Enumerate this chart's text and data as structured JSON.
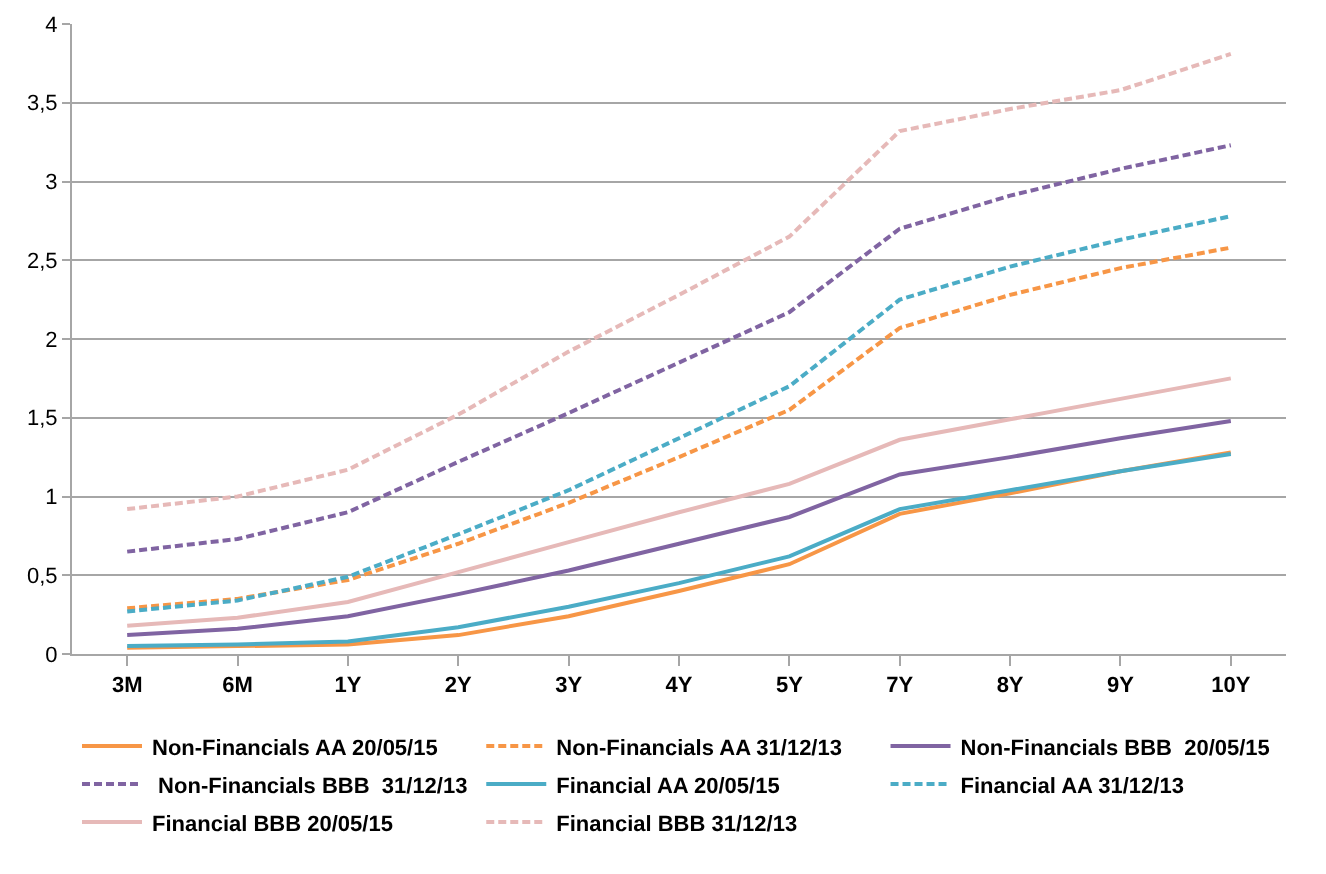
{
  "chart_data": {
    "type": "line",
    "categories": [
      "3M",
      "6M",
      "1Y",
      "2Y",
      "3Y",
      "4Y",
      "5Y",
      "7Y",
      "8Y",
      "9Y",
      "10Y"
    ],
    "ylim": [
      0,
      4
    ],
    "yticks": [
      0,
      {
        "value": 0.5,
        "label": "0,5"
      },
      1,
      {
        "value": 1.5,
        "label": "1,5"
      },
      2,
      {
        "value": 2.5,
        "label": "2,5"
      },
      3,
      {
        "value": 3.5,
        "label": "3,5"
      },
      4
    ],
    "grid": "y",
    "legend": "bottom",
    "marker": "none",
    "series": [
      {
        "name": "Non-Financials AA 20/05/15",
        "color": "#f79646",
        "line_style": "solid",
        "values": [
          0.04,
          0.05,
          0.06,
          0.12,
          0.24,
          0.4,
          0.57,
          0.89,
          1.02,
          1.16,
          1.28
        ]
      },
      {
        "name": "Non-Financials AA 31/12/13",
        "color": "#f79646",
        "line_style": "dashed",
        "values": [
          0.29,
          0.35,
          0.47,
          0.7,
          0.96,
          1.25,
          1.55,
          2.07,
          2.28,
          2.45,
          2.58
        ]
      },
      {
        "name": "Non-Financials BBB  20/05/15",
        "color": "#8064a2",
        "line_style": "solid",
        "values": [
          0.12,
          0.16,
          0.24,
          0.38,
          0.53,
          0.7,
          0.87,
          1.14,
          1.25,
          1.37,
          1.48
        ]
      },
      {
        "name": " Non-Financials BBB  31/12/13",
        "color": "#8064a2",
        "line_style": "dashed",
        "values": [
          0.65,
          0.73,
          0.9,
          1.22,
          1.53,
          1.85,
          2.17,
          2.7,
          2.91,
          3.08,
          3.23
        ]
      },
      {
        "name": "Financial AA 20/05/15",
        "color": "#4bacc6",
        "line_style": "solid",
        "values": [
          0.05,
          0.06,
          0.08,
          0.17,
          0.3,
          0.45,
          0.62,
          0.92,
          1.04,
          1.16,
          1.27
        ]
      },
      {
        "name": "Financial AA 31/12/13",
        "color": "#4bacc6",
        "line_style": "dashed",
        "values": [
          0.27,
          0.34,
          0.49,
          0.76,
          1.04,
          1.37,
          1.7,
          2.25,
          2.46,
          2.63,
          2.78
        ]
      },
      {
        "name": "Financial BBB 20/05/15",
        "color": "#e6b9b8",
        "line_style": "solid",
        "values": [
          0.18,
          0.23,
          0.33,
          0.52,
          0.71,
          0.9,
          1.08,
          1.36,
          1.49,
          1.62,
          1.75
        ]
      },
      {
        "name": "Financial BBB 31/12/13",
        "color": "#e6b9b8",
        "line_style": "dashed",
        "values": [
          0.92,
          1.0,
          1.17,
          1.52,
          1.92,
          2.28,
          2.65,
          3.32,
          3.46,
          3.58,
          3.81
        ]
      }
    ]
  }
}
